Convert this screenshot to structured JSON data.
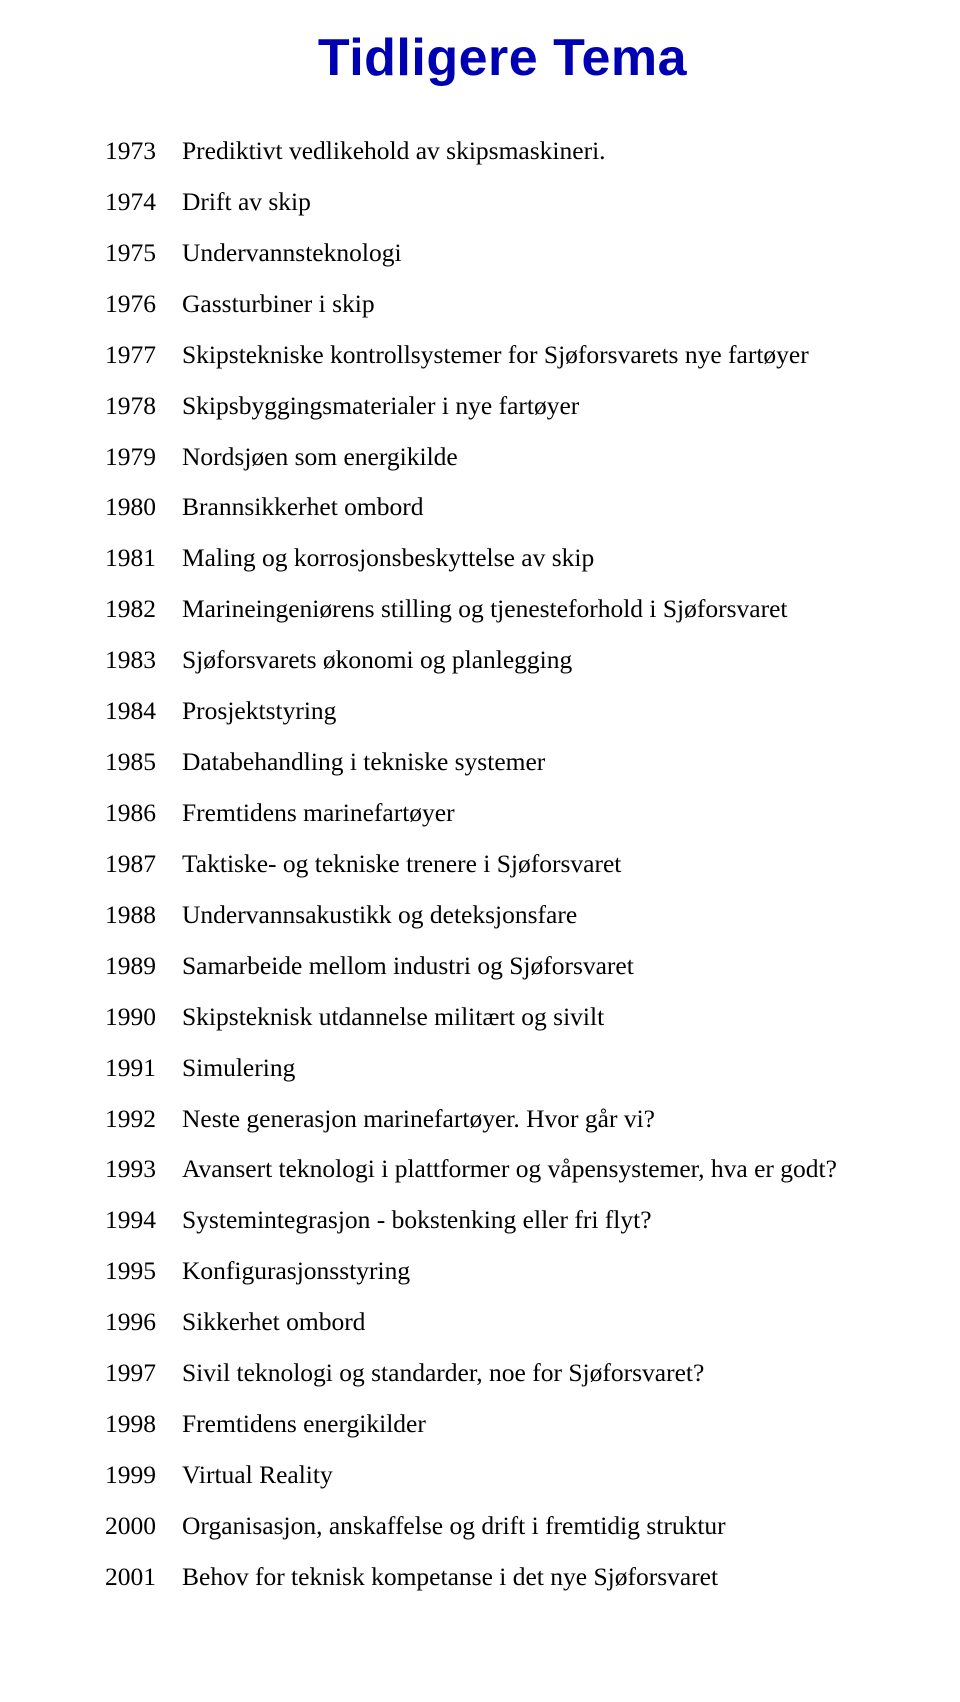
{
  "title": "Tidligere Tema",
  "title_color": "#0000b3",
  "title_fontsize": 52,
  "title_font": "Arial",
  "body_font": "Times New Roman",
  "body_fontsize": 25.5,
  "body_color": "#000000",
  "background_color": "#ffffff",
  "rows": [
    {
      "year": "1973",
      "desc": "Prediktivt vedlikehold av skipsmaskineri."
    },
    {
      "year": "1974",
      "desc": "Drift av skip"
    },
    {
      "year": "1975",
      "desc": "Undervannsteknologi"
    },
    {
      "year": "1976",
      "desc": "Gassturbiner i skip"
    },
    {
      "year": "1977",
      "desc": "Skipstekniske kontrollsystemer for Sjøforsvarets nye fartøyer"
    },
    {
      "year": "1978",
      "desc": "Skipsbyggingsmaterialer i nye fartøyer"
    },
    {
      "year": "1979",
      "desc": "Nordsjøen som energikilde"
    },
    {
      "year": "1980",
      "desc": "Brannsikkerhet ombord"
    },
    {
      "year": "1981",
      "desc": "Maling og korrosjonsbeskyttelse av skip"
    },
    {
      "year": "1982",
      "desc": "Marineingeniørens stilling og tjenesteforhold i Sjøforsvaret"
    },
    {
      "year": "1983",
      "desc": "Sjøforsvarets økonomi og planlegging"
    },
    {
      "year": "1984",
      "desc": "Prosjektstyring"
    },
    {
      "year": "1985",
      "desc": "Databehandling i tekniske systemer"
    },
    {
      "year": "1986",
      "desc": "Fremtidens marinefartøyer"
    },
    {
      "year": "1987",
      "desc": "Taktiske- og tekniske trenere i Sjøforsvaret"
    },
    {
      "year": "1988",
      "desc": "Undervannsakustikk og deteksjonsfare"
    },
    {
      "year": "1989",
      "desc": "Samarbeide mellom industri og Sjøforsvaret"
    },
    {
      "year": "1990",
      "desc": "Skipsteknisk utdannelse militært og sivilt"
    },
    {
      "year": "1991",
      "desc": "Simulering"
    },
    {
      "year": "1992",
      "desc": "Neste generasjon marinefartøyer. Hvor går vi?"
    },
    {
      "year": "1993",
      "desc": "Avansert teknologi i plattformer og våpensystemer, hva er godt?"
    },
    {
      "year": "1994",
      "desc": "Systemintegrasjon - bokstenking eller fri flyt?"
    },
    {
      "year": "1995",
      "desc": "Konfigurasjonsstyring"
    },
    {
      "year": "1996",
      "desc": "Sikkerhet ombord"
    },
    {
      "year": "1997",
      "desc": "Sivil teknologi og standarder, noe for Sjøforsvaret?"
    },
    {
      "year": "1998",
      "desc": "Fremtidens energikilder"
    },
    {
      "year": "1999",
      "desc": "Virtual Reality"
    },
    {
      "year": "2000",
      "desc": "Organisasjon, anskaffelse og drift i fremtidig struktur"
    },
    {
      "year": "2001",
      "desc": "Behov for teknisk kompetanse i det nye Sjøforsvaret"
    }
  ]
}
